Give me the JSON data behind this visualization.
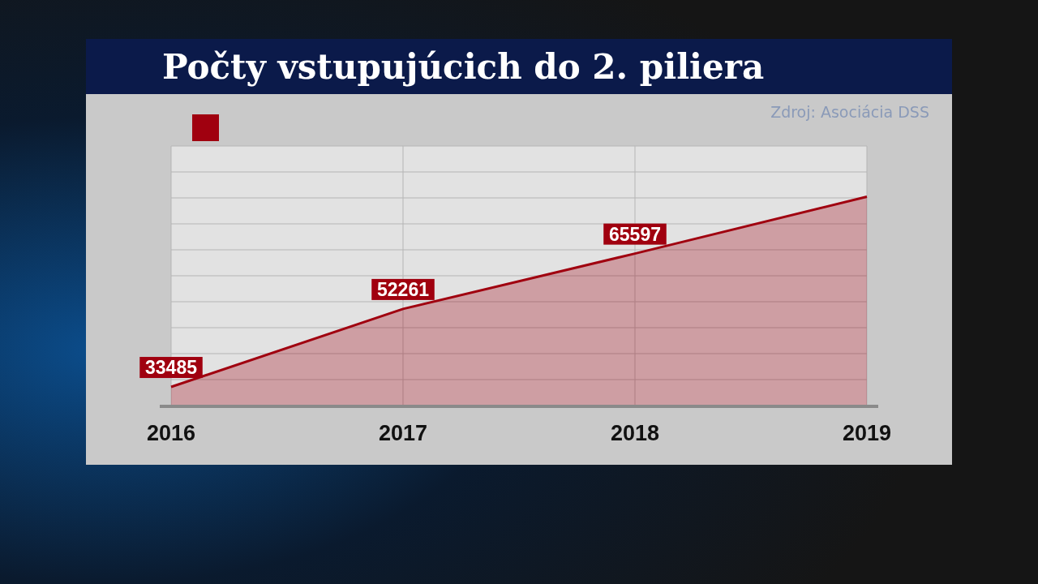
{
  "chart_data": {
    "type": "area",
    "title": "Počty vstupujúcich do 2. piliera",
    "categories": [
      "2016",
      "2017",
      "2018",
      "2019"
    ],
    "series": [
      {
        "color": "#a0000f",
        "values": [
          33485,
          52261,
          65597,
          79300
        ],
        "value_labels": [
          "33485",
          "52261",
          "65597",
          null
        ]
      }
    ],
    "ylim": [
      29000,
      91500
    ],
    "yticks": [
      {
        "value": 35250,
        "label": null
      },
      {
        "value": 41500,
        "label": null
      },
      {
        "value": 47750,
        "label": null
      },
      {
        "value": 54000,
        "label": null
      },
      {
        "value": 60250,
        "label": null
      },
      {
        "value": 66500,
        "label": null
      },
      {
        "value": 72750,
        "label": null
      },
      {
        "value": 79000,
        "label": null
      },
      {
        "value": 85250,
        "label": null
      },
      {
        "value": 91500,
        "label": null
      }
    ],
    "grid": true,
    "tick_labels": "x",
    "annotations": [
      "Zdroj: Asociácia DSS"
    ]
  }
}
